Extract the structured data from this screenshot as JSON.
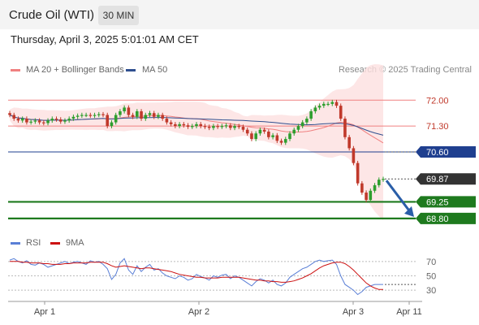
{
  "header": {
    "instrument": "Crude Oil (WTI)",
    "interval": "30 MIN"
  },
  "datetime": "Thursday, April 3, 2025 5:01:01 AM CET",
  "legend": {
    "ma20": "MA 20 + Bollinger Bands",
    "ma50": "MA 50",
    "credit": "Research © 2025 Trading Central"
  },
  "rsi_legend": {
    "rsi": "RSI",
    "ma9": "9MA"
  },
  "colors": {
    "ma20": "#f08080",
    "ma50": "#2f4f8f",
    "band_fill": "#fde0e0",
    "level_red": "#f08080",
    "level_blue": "#1f3f8f",
    "level_green": "#1e7a1e",
    "current_price_bg": "#333333",
    "arrow": "#2a5ea8",
    "candle_up": "#2e9e2e",
    "candle_down": "#c0392b",
    "rsi": "#5a7fd6",
    "rsi_ma": "#cc1111"
  },
  "chart_data": [
    {
      "type": "candlestick",
      "title": "Crude Oil (WTI)",
      "series": [
        {
          "name": "MA 20 + Bollinger Bands"
        },
        {
          "name": "MA 50"
        }
      ],
      "ylim": [
        68.6,
        72.6
      ],
      "price_levels": [
        {
          "label": "72.00",
          "value": 72.0,
          "kind": "resistance"
        },
        {
          "label": "71.30",
          "value": 71.3,
          "kind": "resistance"
        },
        {
          "label": "70.60",
          "value": 70.6,
          "kind": "pivot"
        },
        {
          "label": "69.25",
          "value": 69.25,
          "kind": "support"
        },
        {
          "label": "68.80",
          "value": 68.8,
          "kind": "support"
        }
      ],
      "current_price": {
        "label": "69.87",
        "value": 69.87
      },
      "closes": [
        71.6,
        71.5,
        71.45,
        71.5,
        71.4,
        71.42,
        71.45,
        71.4,
        71.38,
        71.45,
        71.5,
        71.48,
        71.42,
        71.45,
        71.5,
        71.55,
        71.58,
        71.6,
        71.6,
        71.58,
        71.6,
        71.62,
        71.6,
        71.3,
        71.4,
        71.6,
        71.7,
        71.8,
        71.6,
        71.55,
        71.7,
        71.5,
        71.6,
        71.65,
        71.55,
        71.6,
        71.5,
        71.4,
        71.35,
        71.3,
        71.35,
        71.32,
        71.28,
        71.3,
        71.35,
        71.3,
        71.28,
        71.25,
        71.3,
        71.28,
        71.3,
        71.32,
        71.25,
        71.3,
        71.28,
        71.2,
        71.1,
        70.95,
        71.1,
        71.2,
        71.15,
        71.0,
        71.05,
        70.9,
        70.85,
        70.95,
        71.1,
        71.2,
        71.3,
        71.4,
        71.5,
        71.7,
        71.8,
        71.85,
        71.9,
        71.9,
        71.95,
        71.85,
        71.5,
        71.0,
        70.7,
        70.3,
        69.75,
        69.5,
        69.3,
        69.55,
        69.7,
        69.85,
        69.87
      ],
      "xlabels": [
        "Apr 1",
        "Apr 2",
        "Apr 3",
        "Apr 11"
      ]
    },
    {
      "type": "line",
      "title": "",
      "series": [
        {
          "name": "RSI"
        },
        {
          "name": "9MA"
        }
      ],
      "ylim": [
        20,
        80
      ],
      "yticks": [
        "70",
        "50",
        "30"
      ],
      "rsi": [
        72,
        74,
        70,
        68,
        71,
        66,
        65,
        68,
        66,
        62,
        64,
        66,
        68,
        70,
        67,
        69,
        70,
        68,
        66,
        71,
        69,
        70,
        66,
        60,
        45,
        52,
        68,
        74,
        58,
        52,
        64,
        56,
        62,
        66,
        58,
        60,
        54,
        50,
        48,
        46,
        50,
        48,
        44,
        46,
        52,
        49,
        47,
        44,
        50,
        48,
        51,
        52,
        46,
        50,
        48,
        44,
        40,
        36,
        42,
        46,
        44,
        40,
        44,
        38,
        36,
        40,
        48,
        52,
        56,
        60,
        62,
        66,
        70,
        72,
        70,
        71,
        72,
        66,
        50,
        38,
        34,
        30,
        24,
        28,
        34,
        36,
        38,
        38,
        38
      ],
      "ma9": [
        70,
        70,
        70,
        69,
        69,
        68,
        68,
        68,
        67,
        67,
        66,
        66,
        66,
        67,
        67,
        68,
        68,
        68,
        68,
        69,
        69,
        69,
        69,
        67,
        64,
        62,
        63,
        64,
        63,
        62,
        61,
        60,
        61,
        61,
        60,
        59,
        58,
        57,
        56,
        54,
        52,
        51,
        50,
        49,
        48,
        48,
        47,
        47,
        47,
        47,
        48,
        48,
        48,
        48,
        48,
        47,
        46,
        45,
        44,
        44,
        43,
        43,
        42,
        42,
        41,
        41,
        42,
        43,
        45,
        47,
        50,
        53,
        57,
        61,
        64,
        66,
        68,
        69,
        69,
        67,
        63,
        58,
        52,
        46,
        40,
        36,
        33,
        31,
        31
      ]
    }
  ]
}
